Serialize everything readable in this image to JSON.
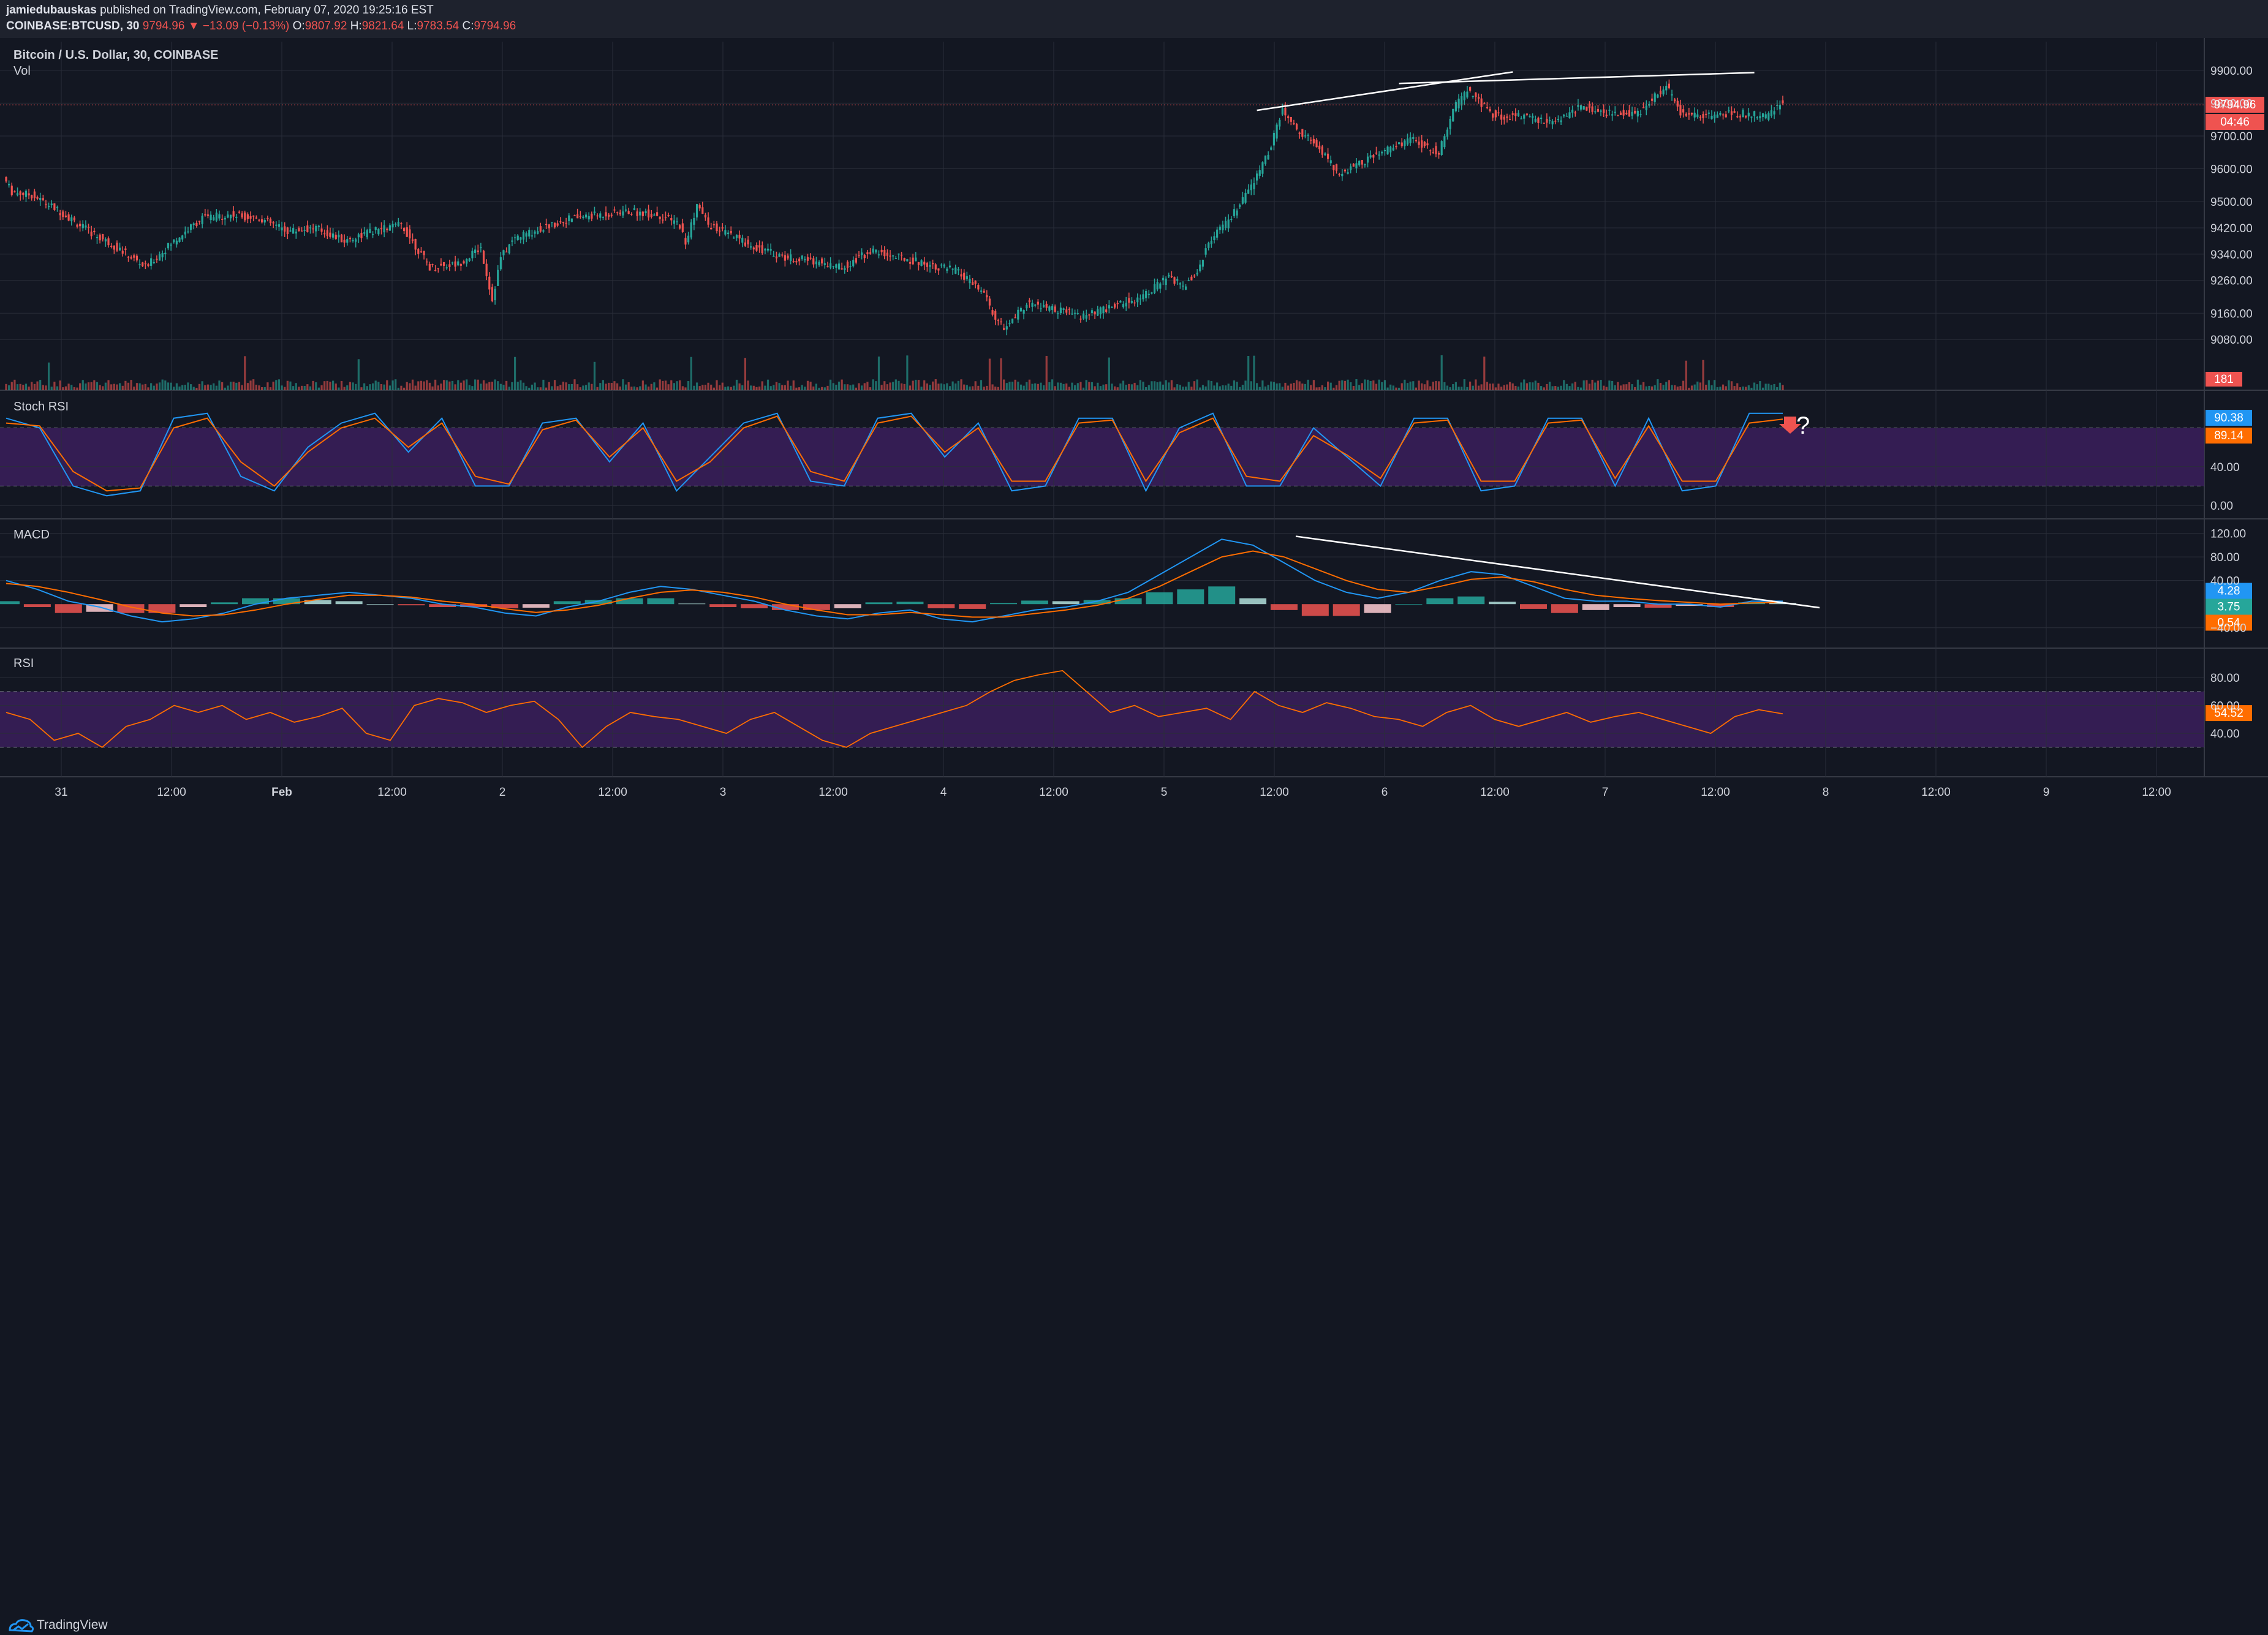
{
  "header": {
    "line1_author": "jamiedubauskas",
    "line1_rest": " published on TradingView.com, February 07, 2020 19:25:16 EST",
    "symbol": "COINBASE:BTCUSD, 30",
    "last": "9794.96",
    "change": "▼ −13.09 (−0.13%)",
    "o_label": "O:",
    "o_value": "9807.92",
    "h_label": "H:",
    "h_value": "9821.64",
    "l_label": "L:",
    "l_value": "9783.54",
    "c_label": "C:",
    "c_value": "9794.96"
  },
  "footer": {
    "brand": "TradingView"
  },
  "colors": {
    "bg": "#131722",
    "up": "#26a69a",
    "down": "#ef5350",
    "grid": "#2a2e39",
    "stochK": "#2196f3",
    "stochD": "#ff6d00",
    "rsi": "#ff6d00",
    "band": "#3b1f5c",
    "trendline": "#ffffff"
  },
  "chart_data": [
    {
      "type": "candlestick",
      "title": "Bitcoin / U.S. Dollar, 30, COINBASE",
      "subtitle": "Vol",
      "yticks": [
        "9900.00",
        "9800.00",
        "9700.00",
        "9600.00",
        "9500.00",
        "9420.00",
        "9340.00",
        "9260.00",
        "9160.00",
        "9080.00"
      ],
      "ylim": [
        9000,
        9950
      ],
      "last_price": "9794.96",
      "countdown": "04:46",
      "volume_last": "181",
      "x_labels": [
        "31",
        "12:00",
        "Feb",
        "12:00",
        "2",
        "12:00",
        "3",
        "12:00",
        "4",
        "12:00",
        "5",
        "12:00",
        "6",
        "12:00",
        "7",
        "12:00",
        "8",
        "12:00",
        "9",
        "12:00"
      ],
      "x_label_bold": [
        "Feb"
      ],
      "bars": 330,
      "path_points": [
        [
          0,
          9575
        ],
        [
          3,
          9530
        ],
        [
          10,
          9520
        ],
        [
          20,
          9470
        ],
        [
          30,
          9410
        ],
        [
          40,
          9360
        ],
        [
          50,
          9300
        ],
        [
          60,
          9380
        ],
        [
          70,
          9450
        ],
        [
          80,
          9460
        ],
        [
          90,
          9450
        ],
        [
          100,
          9410
        ],
        [
          110,
          9420
        ],
        [
          120,
          9380
        ],
        [
          130,
          9410
        ],
        [
          140,
          9430
        ],
        [
          150,
          9300
        ],
        [
          160,
          9310
        ],
        [
          168,
          9360
        ],
        [
          172,
          9200
        ],
        [
          175,
          9330
        ],
        [
          180,
          9390
        ],
        [
          190,
          9420
        ],
        [
          200,
          9450
        ],
        [
          210,
          9460
        ],
        [
          220,
          9470
        ],
        [
          230,
          9460
        ],
        [
          238,
          9430
        ],
        [
          240,
          9370
        ],
        [
          244,
          9490
        ],
        [
          248,
          9430
        ],
        [
          255,
          9400
        ],
        [
          265,
          9360
        ],
        [
          275,
          9330
        ],
        [
          285,
          9320
        ],
        [
          295,
          9300
        ],
        [
          305,
          9350
        ],
        [
          315,
          9330
        ],
        [
          325,
          9310
        ],
        [
          335,
          9290
        ],
        [
          345,
          9220
        ],
        [
          348,
          9160
        ],
        [
          352,
          9110
        ],
        [
          360,
          9190
        ],
        [
          370,
          9170
        ],
        [
          380,
          9150
        ],
        [
          390,
          9180
        ],
        [
          400,
          9210
        ],
        [
          410,
          9270
        ],
        [
          415,
          9240
        ],
        [
          420,
          9290
        ],
        [
          425,
          9390
        ],
        [
          430,
          9430
        ],
        [
          435,
          9490
        ],
        [
          440,
          9560
        ],
        [
          445,
          9650
        ],
        [
          450,
          9780
        ],
        [
          455,
          9720
        ],
        [
          460,
          9690
        ],
        [
          465,
          9640
        ],
        [
          470,
          9580
        ],
        [
          475,
          9610
        ],
        [
          485,
          9650
        ],
        [
          495,
          9690
        ],
        [
          505,
          9650
        ],
        [
          510,
          9780
        ],
        [
          515,
          9840
        ],
        [
          520,
          9800
        ],
        [
          525,
          9760
        ],
        [
          535,
          9760
        ],
        [
          545,
          9740
        ],
        [
          555,
          9790
        ],
        [
          565,
          9770
        ],
        [
          575,
          9770
        ],
        [
          585,
          9850
        ],
        [
          590,
          9770
        ],
        [
          600,
          9760
        ],
        [
          610,
          9770
        ],
        [
          620,
          9760
        ],
        [
          625,
          9800
        ]
      ]
    },
    {
      "type": "line",
      "title": "Stoch RSI",
      "yticks": [
        "0.00",
        "40.00"
      ],
      "ylim": [
        -5,
        110
      ],
      "band": [
        20,
        80
      ],
      "series": [
        {
          "name": "K",
          "values": [
            90,
            80,
            20,
            10,
            15,
            90,
            95,
            30,
            15,
            60,
            85,
            95,
            55,
            90,
            20,
            20,
            85,
            90,
            45,
            85,
            15,
            50,
            85,
            95,
            25,
            20,
            90,
            95,
            50,
            85,
            15,
            20,
            90,
            90,
            15,
            80,
            95,
            20,
            20,
            80,
            50,
            20,
            90,
            90,
            15,
            20,
            90,
            90,
            20,
            90,
            15,
            20,
            95,
            95
          ]
        },
        {
          "name": "D",
          "values": [
            85,
            82,
            35,
            15,
            18,
            80,
            90,
            45,
            20,
            55,
            80,
            90,
            60,
            85,
            30,
            22,
            78,
            88,
            50,
            80,
            25,
            45,
            80,
            92,
            35,
            25,
            85,
            92,
            55,
            80,
            25,
            25,
            85,
            88,
            25,
            75,
            90,
            30,
            25,
            72,
            52,
            28,
            85,
            88,
            25,
            25,
            85,
            88,
            28,
            82,
            25,
            25,
            85,
            89
          ]
        }
      ],
      "last_k": "90.38",
      "last_d": "89.14",
      "annotation": "?"
    },
    {
      "type": "line",
      "title": "MACD",
      "yticks": [
        "120.00",
        "80.00",
        "40.00",
        "−40.00"
      ],
      "ylim": [
        -60,
        130
      ],
      "series": [
        {
          "name": "MACD",
          "values": [
            40,
            25,
            5,
            -5,
            -20,
            -30,
            -25,
            -15,
            0,
            10,
            15,
            20,
            15,
            10,
            0,
            -5,
            -15,
            -20,
            -5,
            5,
            20,
            30,
            25,
            15,
            5,
            -10,
            -20,
            -25,
            -15,
            -10,
            -25,
            -30,
            -20,
            -10,
            -5,
            5,
            20,
            50,
            80,
            110,
            100,
            70,
            40,
            20,
            10,
            20,
            40,
            55,
            50,
            30,
            10,
            5,
            5,
            0,
            0,
            -5,
            5,
            5
          ]
        },
        {
          "name": "Signal",
          "values": [
            35,
            30,
            20,
            8,
            -5,
            -15,
            -20,
            -18,
            -10,
            0,
            8,
            15,
            15,
            12,
            5,
            0,
            -8,
            -14,
            -10,
            -2,
            10,
            20,
            24,
            20,
            12,
            0,
            -10,
            -18,
            -18,
            -14,
            -18,
            -22,
            -22,
            -16,
            -10,
            -2,
            10,
            30,
            55,
            80,
            90,
            80,
            60,
            40,
            25,
            20,
            30,
            42,
            46,
            38,
            25,
            15,
            10,
            6,
            3,
            0,
            2,
            3
          ]
        },
        {
          "name": "Histogram",
          "values": [
            5,
            -5,
            -15,
            -13,
            -15,
            -15,
            -5,
            3,
            10,
            10,
            7,
            5,
            0,
            -2,
            -5,
            -5,
            -7,
            -6,
            5,
            7,
            10,
            10,
            1,
            -5,
            -7,
            -10,
            -10,
            -7,
            3,
            4,
            -7,
            -8,
            2,
            6,
            5,
            7,
            10,
            20,
            25,
            30,
            10,
            -10,
            -20,
            -20,
            -15,
            0,
            10,
            13,
            4,
            -8,
            -15,
            -10,
            -5,
            -6,
            -3,
            -5,
            3,
            2
          ]
        }
      ],
      "last_macd": "4.28",
      "last_hist": "3.75",
      "last_signal": "0.54"
    },
    {
      "type": "line",
      "title": "RSI",
      "yticks": [
        "80.00",
        "60.00",
        "40.00"
      ],
      "ylim": [
        15,
        95
      ],
      "band": [
        30,
        70
      ],
      "series": [
        {
          "name": "RSI",
          "values": [
            55,
            50,
            35,
            40,
            30,
            45,
            50,
            60,
            55,
            60,
            50,
            55,
            48,
            52,
            58,
            40,
            35,
            60,
            65,
            62,
            55,
            60,
            63,
            50,
            30,
            45,
            55,
            52,
            50,
            45,
            40,
            50,
            55,
            45,
            35,
            30,
            40,
            45,
            50,
            55,
            60,
            70,
            78,
            82,
            85,
            70,
            55,
            60,
            52,
            55,
            58,
            50,
            70,
            60,
            55,
            62,
            58,
            52,
            50,
            45,
            55,
            60,
            50,
            45,
            50,
            55,
            48,
            52,
            55,
            50,
            45,
            40,
            52,
            57,
            54
          ]
        }
      ],
      "last": "54.52"
    }
  ]
}
